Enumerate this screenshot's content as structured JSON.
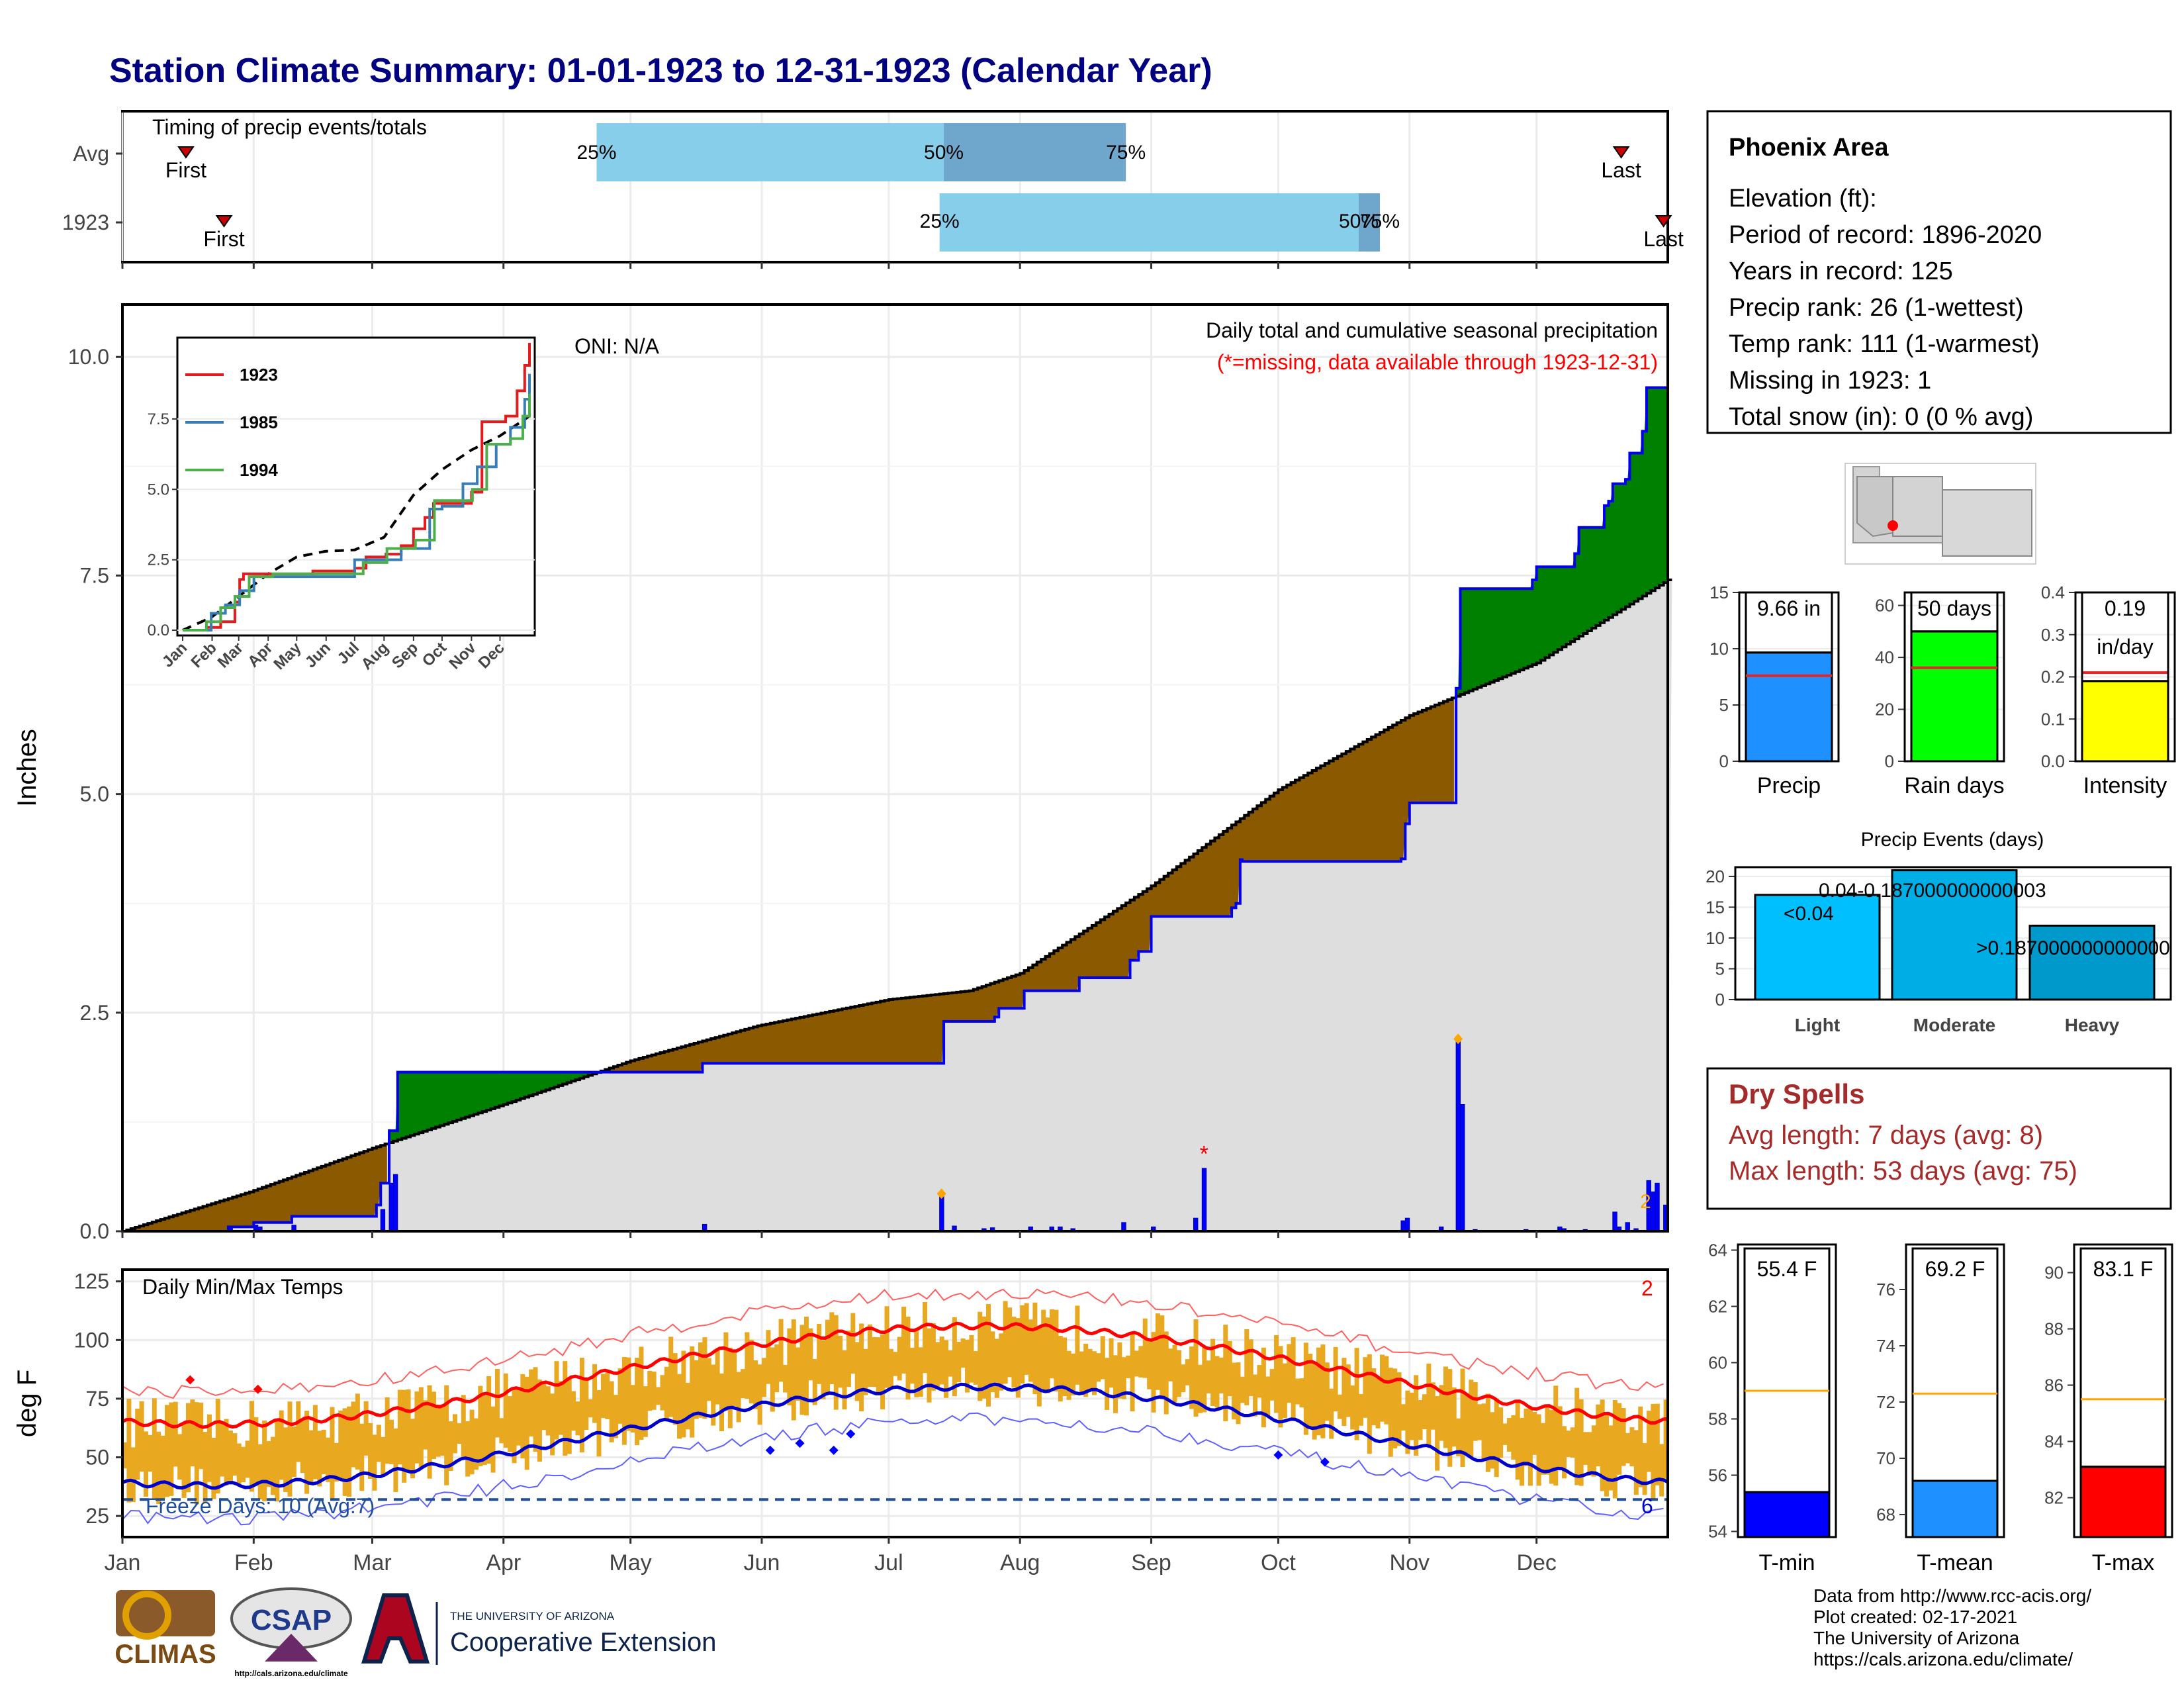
{
  "title": "Station Climate Summary: 01-01-1923 to 12-31-1923 (Calendar Year)",
  "timing": {
    "panel_label": "Timing of precip events/totals",
    "rows": [
      {
        "label": "Avg",
        "first_day": 15,
        "last_day": 354,
        "p25_day": 112,
        "p50_day": 194,
        "p75_day": 237,
        "labels": {
          "p25": "25%",
          "p50": "50%",
          "p75": "75%",
          "first": "First",
          "last": "Last"
        }
      },
      {
        "label": "1923",
        "first_day": 24,
        "last_day": 364,
        "p25_day": 193,
        "p50_day": 292,
        "p75_day": 297,
        "labels": {
          "p25": "25%",
          "p50": "50%",
          "p75": "75%",
          "first": "First",
          "last": "Last"
        }
      }
    ],
    "colors": {
      "light": "#87ceeb",
      "dark": "#6fa7cc",
      "marker": "#cc0000"
    }
  },
  "main_panel": {
    "ylabel": "Inches",
    "yticks": [
      "0.0",
      "2.5",
      "5.0",
      "7.5",
      "10.0"
    ],
    "ymax": 10.6,
    "oni": "ONI: N/A",
    "note1": "Daily total and cumulative seasonal precipitation",
    "note2": "(*=missing, data available through 1923-12-31)",
    "corner_label": "2",
    "colors": {
      "deficit": "#8b5a00",
      "surplus": "#008000",
      "avg_fill": "#dedede",
      "obs_line": "#0000ee",
      "daily_bar": "#0000ff",
      "missing": "#ff0000",
      "extreme": "#ffa500"
    }
  },
  "inset": {
    "yticks": [
      "0.0",
      "2.5",
      "5.0",
      "7.5"
    ],
    "months": [
      "Jan",
      "Feb",
      "Mar",
      "Apr",
      "May",
      "Jun",
      "Jul",
      "Aug",
      "Sep",
      "Oct",
      "Nov",
      "Dec"
    ],
    "legend": [
      {
        "name": "1923",
        "color": "#e41a1c"
      },
      {
        "name": "1985",
        "color": "#377eb8"
      },
      {
        "name": "1994",
        "color": "#4daf4a"
      }
    ]
  },
  "temp_panel": {
    "title": "Daily Min/Max Temps",
    "ylabel": "deg F",
    "yticks": [
      "25",
      "50",
      "75",
      "100",
      "125"
    ],
    "freeze": "Freeze Days: 10 (Avg:7)",
    "corner_top": "2",
    "corner_bottom": "6",
    "months": [
      "Jan",
      "Feb",
      "Mar",
      "Apr",
      "May",
      "Jun",
      "Jul",
      "Aug",
      "Sep",
      "Oct",
      "Nov",
      "Dec"
    ]
  },
  "info_box": {
    "station": "Phoenix Area",
    "lines": [
      "Elevation (ft):",
      "Period of record: 1896-2020",
      "Years in record: 125",
      "Precip rank: 26 (1-wettest)",
      "Temp rank: 111 (1-warmest)",
      "Missing in 1923: 1",
      "Total snow (in): 0 (0 % avg)"
    ]
  },
  "precip_bars": [
    {
      "name": "Precip",
      "value": 9.66,
      "avg": 7.6,
      "label": "9.66 in",
      "ticks": [
        "0",
        "5",
        "10",
        "15"
      ],
      "max": 15,
      "color": "#1e90ff"
    },
    {
      "name": "Rain days",
      "value": 50,
      "avg": 36,
      "label": "50 days",
      "ticks": [
        "0",
        "20",
        "40",
        "60"
      ],
      "max": 65,
      "color": "#00ff00"
    },
    {
      "name": "Intensity",
      "value": 0.19,
      "avg": 0.21,
      "label": "0.19",
      "label2": "in/day",
      "ticks": [
        "0.0",
        "0.1",
        "0.2",
        "0.3",
        "0.4"
      ],
      "max": 0.4,
      "color": "#ffff00"
    }
  ],
  "events": {
    "title": "Precip Events (days)",
    "ticks": [
      "0",
      "5",
      "10",
      "15",
      "20"
    ],
    "bars": [
      {
        "name": "Light",
        "value": 17,
        "label": "<0.04",
        "color": "#00bfff"
      },
      {
        "name": "Moderate",
        "value": 21,
        "label": "0.04-0.187000000000003",
        "color": "#00aee6"
      },
      {
        "name": "Heavy",
        "value": 12,
        "label": ">0.187000000000000",
        "color": "#0099cc"
      }
    ]
  },
  "dry_spells": {
    "title": "Dry Spells",
    "avg": "Avg length: 7 days (avg: 8)",
    "max": "Max length: 53 days (avg: 75)"
  },
  "temp_bars": [
    {
      "name": "T-min",
      "value": 55.4,
      "avg": 59.0,
      "label": "55.4 F",
      "min": 53.8,
      "max": 64.2,
      "ticks": [
        "54",
        "56",
        "58",
        "60",
        "62",
        "64"
      ],
      "color": "#0000ff"
    },
    {
      "name": "T-mean",
      "value": 69.2,
      "avg": 72.3,
      "label": "69.2 F",
      "min": 67.2,
      "max": 77.6,
      "ticks": [
        "68",
        "70",
        "72",
        "74",
        "76"
      ],
      "color": "#1e90ff"
    },
    {
      "name": "T-max",
      "value": 83.1,
      "avg": 85.5,
      "label": "83.1 F",
      "min": 80.6,
      "max": 91.0,
      "ticks": [
        "82",
        "84",
        "86",
        "88",
        "90"
      ],
      "color": "#ff0000"
    }
  ],
  "footer": {
    "lines": [
      "Data from http://www.rcc-acis.org/",
      "Plot created: 02-17-2021",
      "The University of Arizona",
      "https://cals.arizona.edu/climate/"
    ],
    "logos": {
      "climas": "CLIMAS",
      "csap": "CSAP",
      "csap_url": "http://cals.arizona.edu/climate",
      "ua_top": "THE UNIVERSITY OF ARIZONA",
      "ua_name": "Cooperative Extension"
    }
  }
}
